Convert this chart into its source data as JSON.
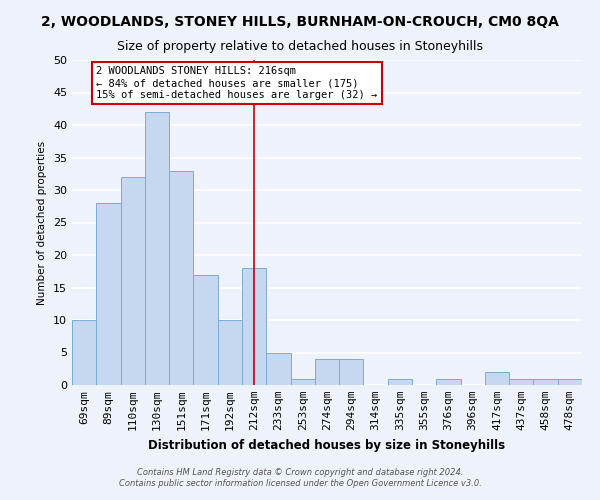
{
  "title": "2, WOODLANDS, STONEY HILLS, BURNHAM-ON-CROUCH, CM0 8QA",
  "subtitle": "Size of property relative to detached houses in Stoneyhills",
  "xlabel": "Distribution of detached houses by size in Stoneyhills",
  "ylabel": "Number of detached properties",
  "categories": [
    "69sqm",
    "89sqm",
    "110sqm",
    "130sqm",
    "151sqm",
    "171sqm",
    "192sqm",
    "212sqm",
    "233sqm",
    "253sqm",
    "274sqm",
    "294sqm",
    "314sqm",
    "335sqm",
    "355sqm",
    "376sqm",
    "396sqm",
    "417sqm",
    "437sqm",
    "458sqm",
    "478sqm"
  ],
  "values": [
    10,
    28,
    32,
    42,
    33,
    17,
    10,
    18,
    5,
    1,
    4,
    4,
    0,
    1,
    0,
    1,
    0,
    2,
    1,
    1,
    1
  ],
  "bar_color": "#c5d8f0",
  "bar_edge_color": "#7aadd4",
  "vline_x": 7,
  "vline_color": "#cc0000",
  "ylim": [
    0,
    50
  ],
  "yticks": [
    0,
    5,
    10,
    15,
    20,
    25,
    30,
    35,
    40,
    45,
    50
  ],
  "annotation_title": "2 WOODLANDS STONEY HILLS: 216sqm",
  "annotation_line1": "← 84% of detached houses are smaller (175)",
  "annotation_line2": "15% of semi-detached houses are larger (32) →",
  "annotation_box_color": "#ffffff",
  "annotation_box_edge": "#cc0000",
  "footer1": "Contains HM Land Registry data © Crown copyright and database right 2024.",
  "footer2": "Contains public sector information licensed under the Open Government Licence v3.0.",
  "bg_color": "#eef2fa",
  "grid_color": "#ffffff",
  "title_fontsize": 10,
  "subtitle_fontsize": 9
}
